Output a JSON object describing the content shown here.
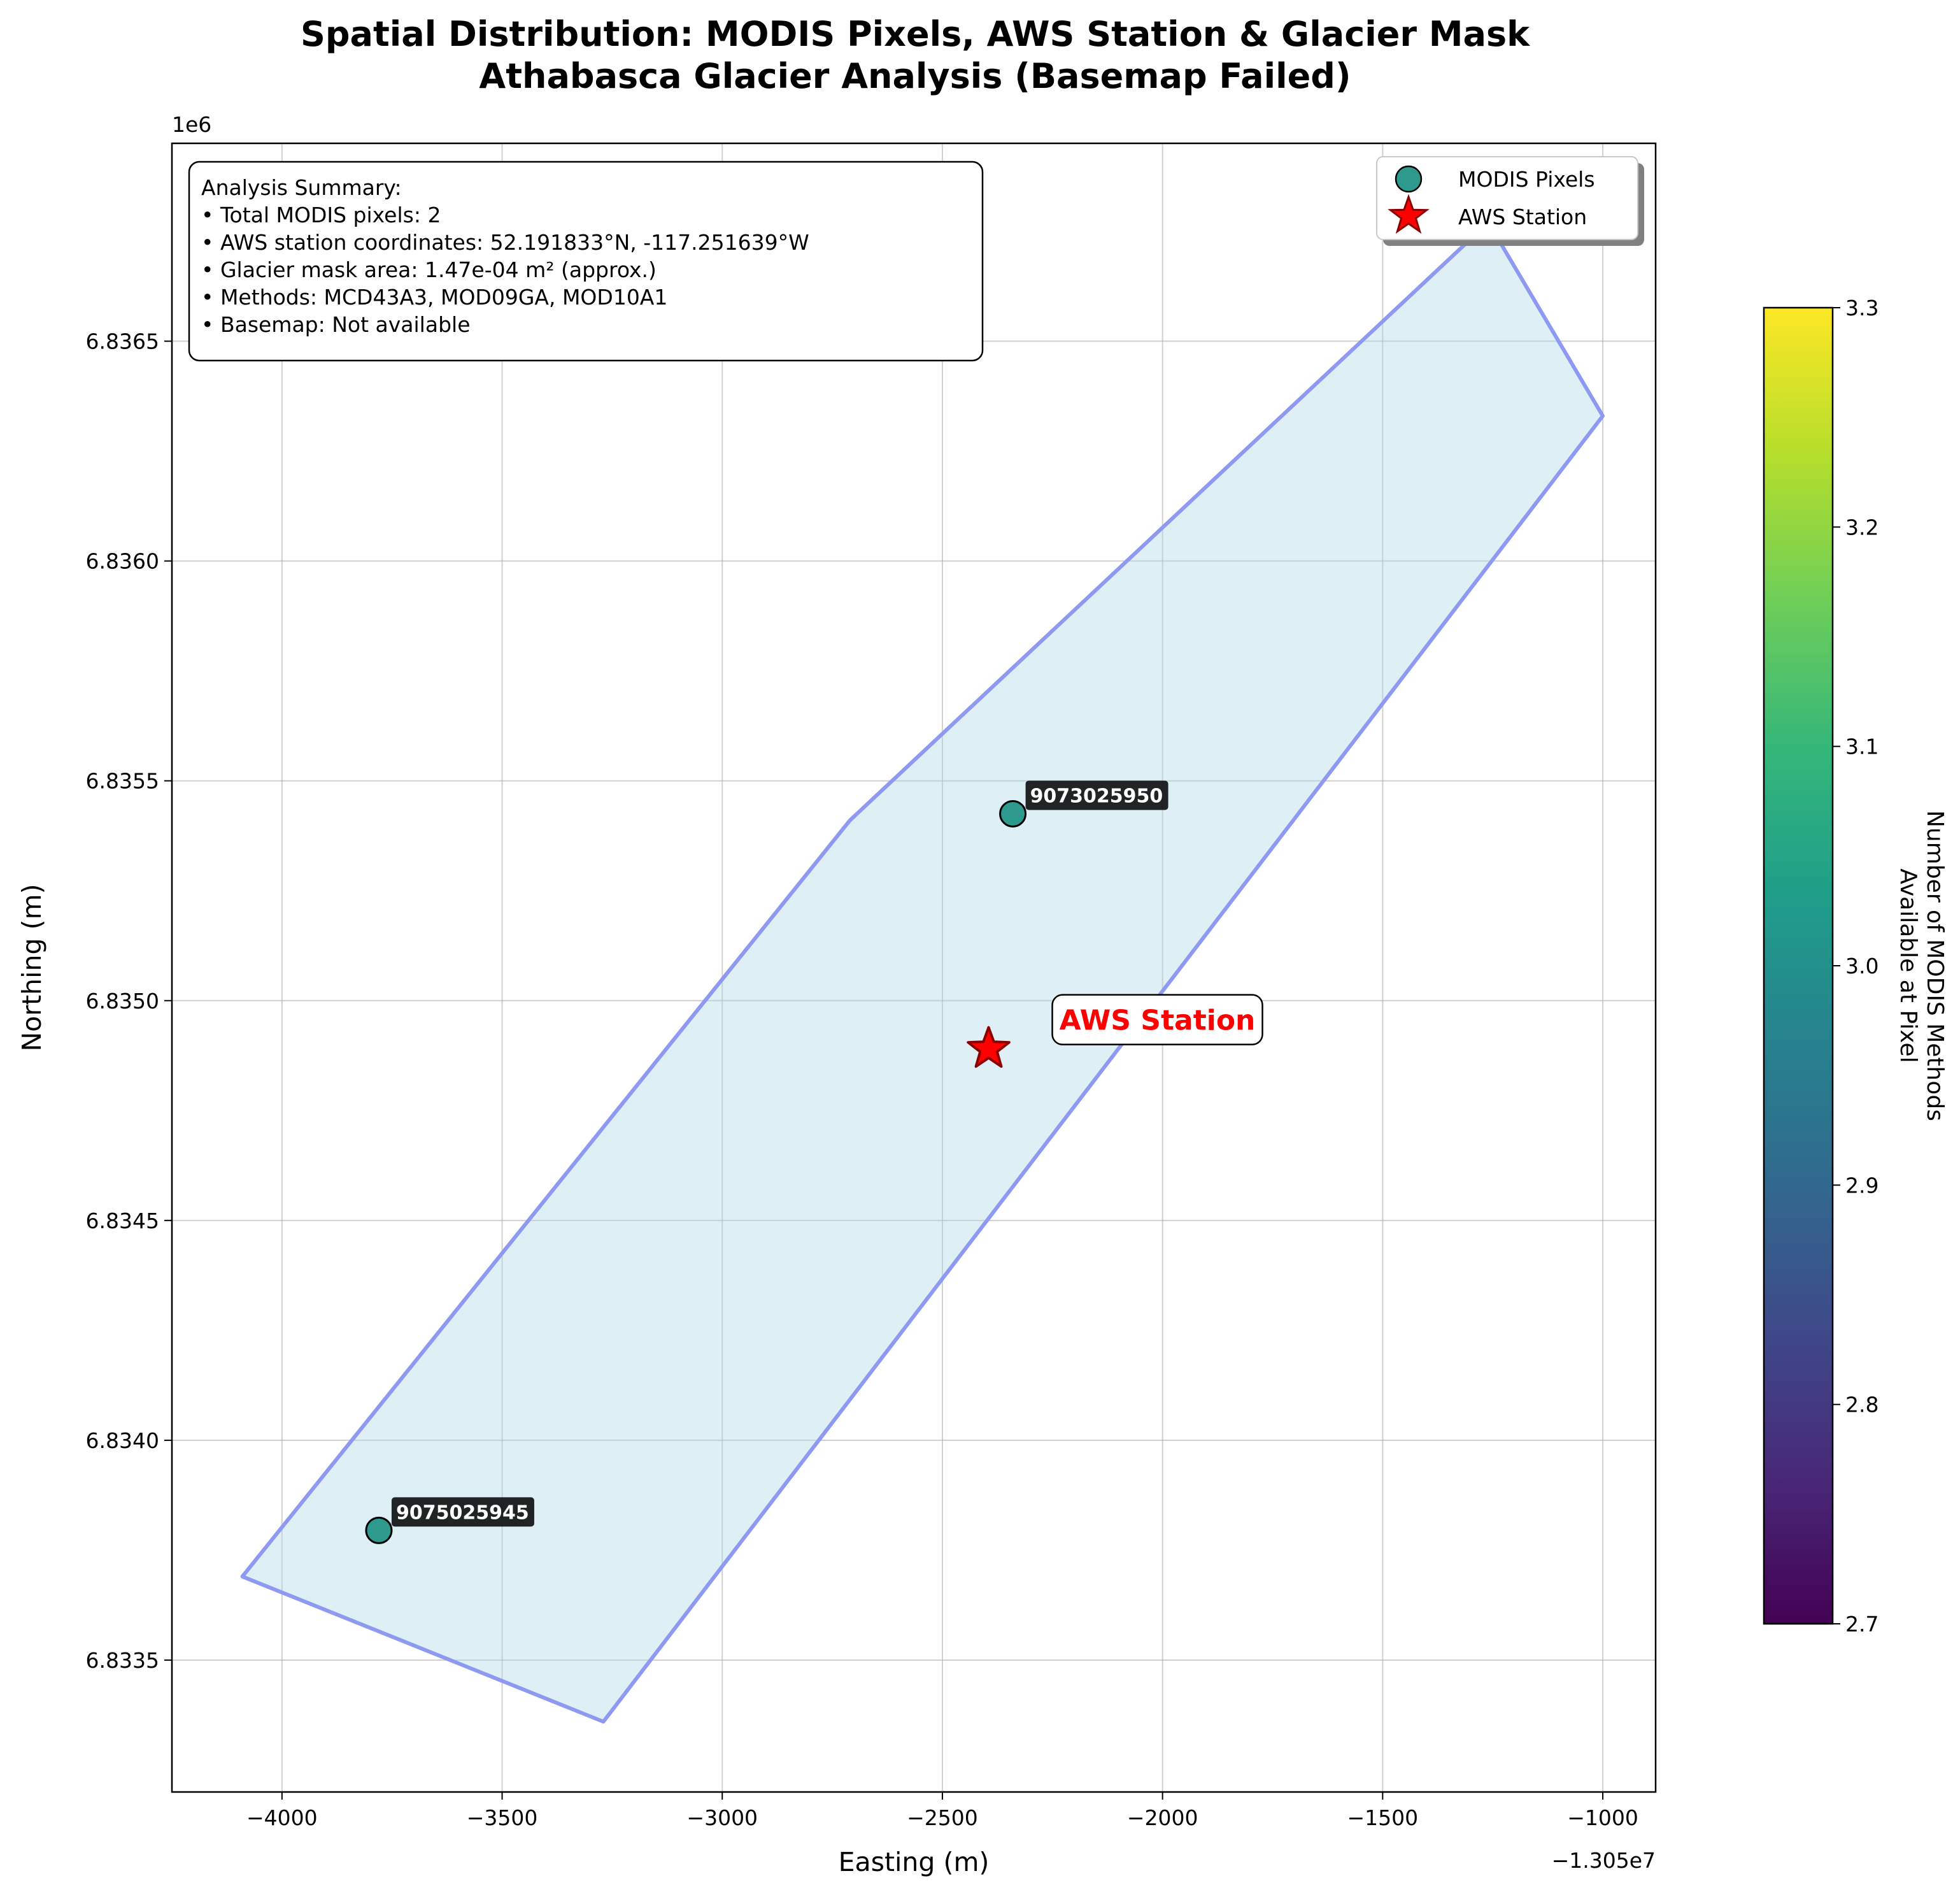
{
  "chart_data": {
    "type": "scatter",
    "title": "Spatial Distribution: MODIS Pixels, AWS Station & Glacier Mask",
    "subtitle": "Athabasca Glacier Analysis (Basemap Failed)",
    "xlabel": "Easting (m)",
    "ylabel": "Northing (m)",
    "x_offset_label": "−1.305e7",
    "y_offset_label": "1e6",
    "xlim": [
      -4250,
      -880
    ],
    "ylim": [
      6833200,
      6836950
    ],
    "x_ticks": [
      -4000,
      -3500,
      -3000,
      -2500,
      -2000,
      -1500,
      -1000
    ],
    "x_tick_labels": [
      "−4000",
      "−3500",
      "−3000",
      "−2500",
      "−2000",
      "−1500",
      "−1000"
    ],
    "y_ticks": [
      6833500,
      6834000,
      6834500,
      6835000,
      6835500,
      6836000,
      6836500
    ],
    "y_tick_labels": [
      "6.8335",
      "6.8340",
      "6.8345",
      "6.8350",
      "6.8355",
      "6.8360",
      "6.8365"
    ],
    "grid": true,
    "glacier_mask": {
      "name": "Glacier Mask",
      "fill": "#add8e6",
      "edge": "#8e99f2",
      "polygon": [
        [
          -4090,
          6833690
        ],
        [
          -3270,
          6833360
        ],
        [
          -1000,
          6836330
        ],
        [
          -1260,
          6836770
        ],
        [
          -2710,
          6835410
        ]
      ]
    },
    "series": [
      {
        "name": "MODIS Pixels",
        "color": "#2e9a8e",
        "points": [
          {
            "x": -2340,
            "y": 6835425,
            "label": "9073025950"
          },
          {
            "x": -3780,
            "y": 6833795,
            "label": "9075025945"
          }
        ]
      },
      {
        "name": "AWS Station",
        "color": "#ff0000",
        "points": [
          {
            "x": -2395,
            "y": 6834890,
            "label": "AWS Station"
          }
        ]
      }
    ],
    "legend": {
      "placement": "top-right",
      "entries": [
        "MODIS Pixels",
        "AWS Station"
      ]
    },
    "summary_box": [
      "Analysis Summary:",
      "• Total MODIS pixels: 2",
      "• AWS station coordinates: 52.191833°N, -117.251639°W",
      "• Glacier mask area: 1.47e-04 m² (approx.)",
      "• Methods: MCD43A3, MOD09GA, MOD10A1",
      "• Basemap: Not available"
    ],
    "colorbar": {
      "label_lines": [
        "Number of MODIS Methods",
        "Available at Pixel"
      ],
      "range": [
        2.7,
        3.3
      ],
      "ticks": [
        2.7,
        2.8,
        2.9,
        3.0,
        3.1,
        3.2,
        3.3
      ],
      "tick_labels": [
        "2.7",
        "2.8",
        "2.9",
        "3.0",
        "3.1",
        "3.2",
        "3.3"
      ],
      "colormap": "viridis",
      "colors": [
        "#440154",
        "#482878",
        "#3e4989",
        "#31688e",
        "#26828e",
        "#1f9e89",
        "#35b779",
        "#6ece58",
        "#b5de2b",
        "#fde725"
      ]
    }
  }
}
